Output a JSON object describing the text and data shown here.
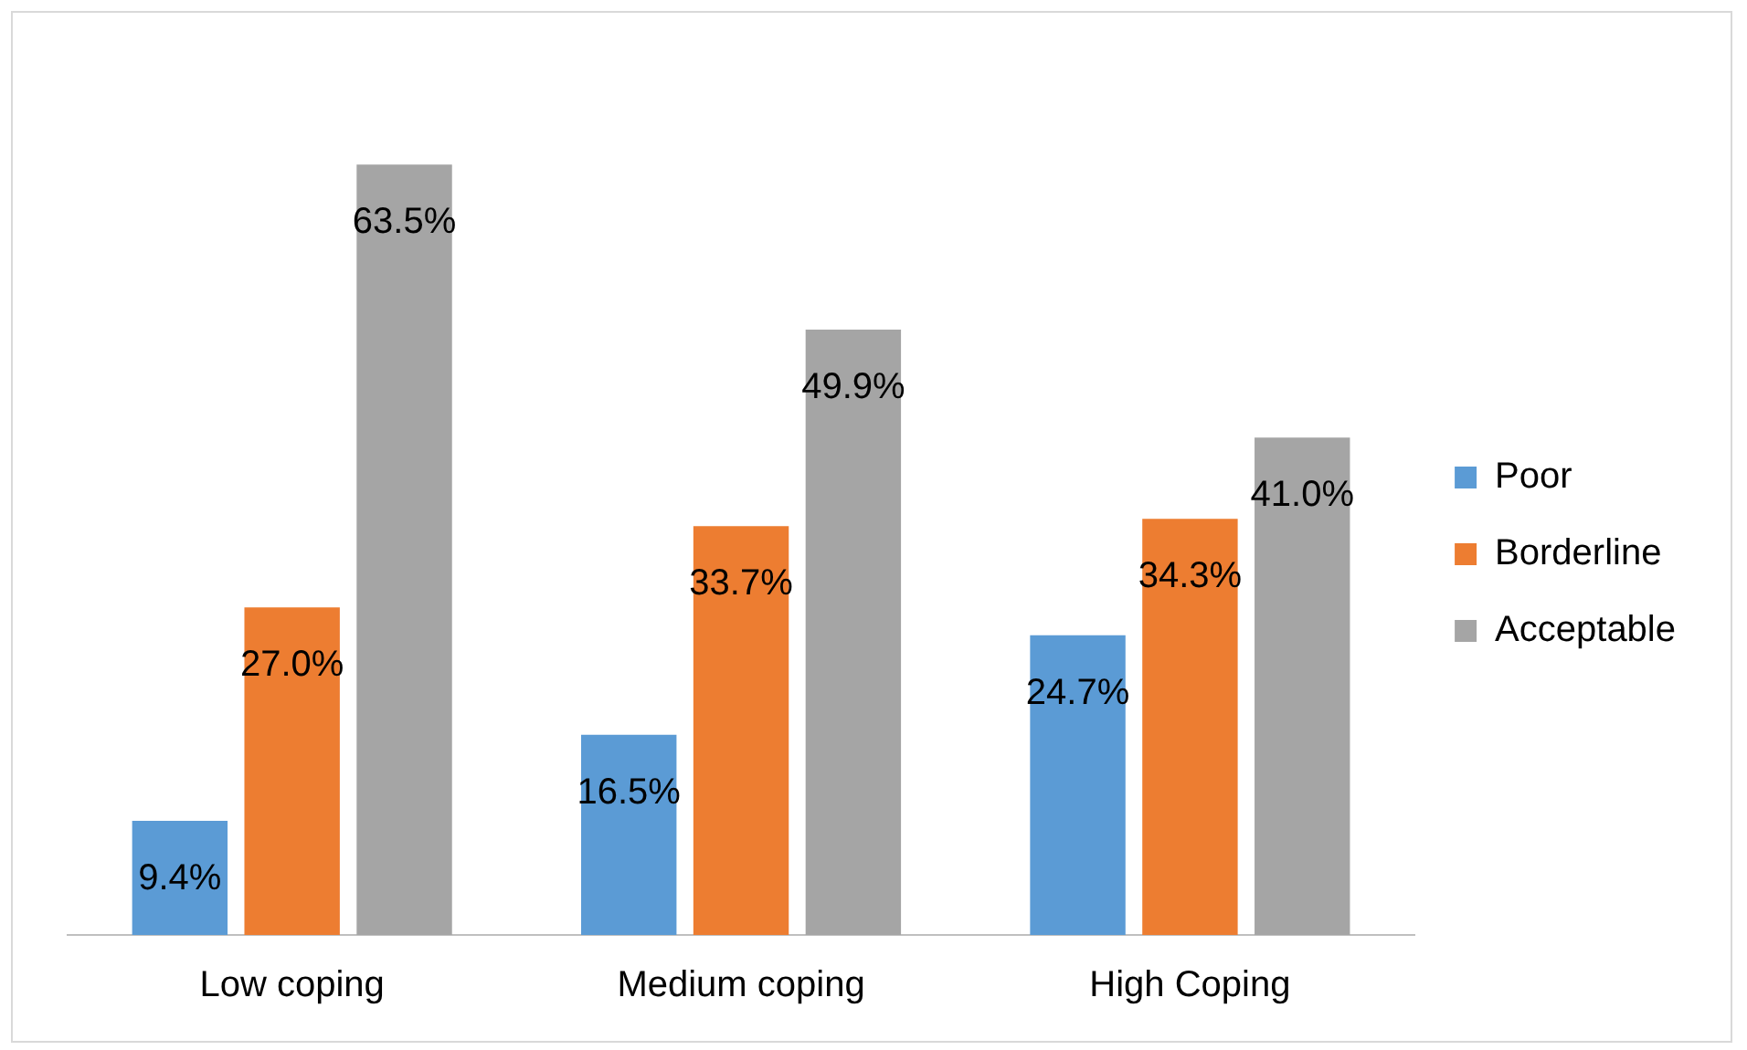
{
  "chart_data": {
    "type": "bar",
    "categories": [
      "Low coping",
      "Medium coping",
      "High Coping"
    ],
    "series": [
      {
        "name": "Poor",
        "color": "#5b9bd5",
        "values": [
          9.4,
          16.5,
          24.7
        ],
        "value_labels": [
          "9.4%",
          "16.5%",
          "24.7%"
        ]
      },
      {
        "name": "Borderline",
        "color": "#ed7d31",
        "values": [
          27.0,
          33.7,
          34.3
        ],
        "value_labels": [
          "27.0%",
          "33.7%",
          "34.3%"
        ]
      },
      {
        "name": "Acceptable",
        "color": "#a5a5a5",
        "values": [
          63.5,
          49.9,
          41.0
        ],
        "value_labels": [
          "63.5%",
          "49.9%",
          "41.0%"
        ]
      }
    ],
    "legend": "right",
    "grid": false
  }
}
